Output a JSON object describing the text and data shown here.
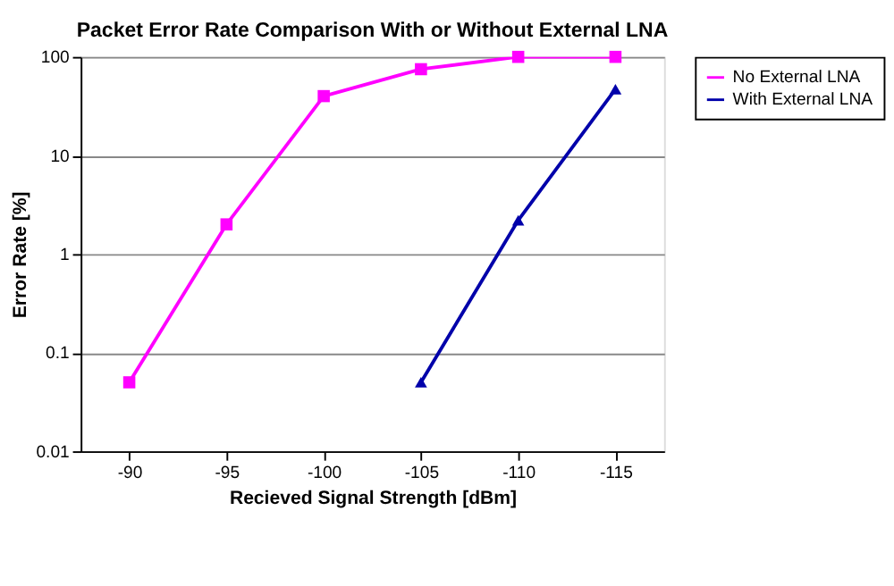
{
  "chart_data": {
    "type": "line",
    "title": "Packet Error Rate Comparison With or Without External LNA",
    "xlabel": "Recieved Signal Strength [dBm]",
    "ylabel": "Error Rate [%]",
    "categories": [
      "-90",
      "-95",
      "-100",
      "-105",
      "-110",
      "-115"
    ],
    "series": [
      {
        "name": "No External LNA",
        "color": "#ff00ff",
        "marker": "square",
        "values": [
          0.05,
          2,
          40,
          75,
          100,
          100
        ]
      },
      {
        "name": "With External LNA",
        "color": "#0000aa",
        "marker": "triangle",
        "values": [
          null,
          null,
          null,
          0.05,
          2.2,
          47
        ]
      }
    ],
    "log": "y",
    "ylim": [
      0.01,
      100
    ],
    "yticks": [
      0.01,
      0.1,
      1,
      10,
      100
    ],
    "grid": "y",
    "legend": "right",
    "line_style": "solid"
  }
}
